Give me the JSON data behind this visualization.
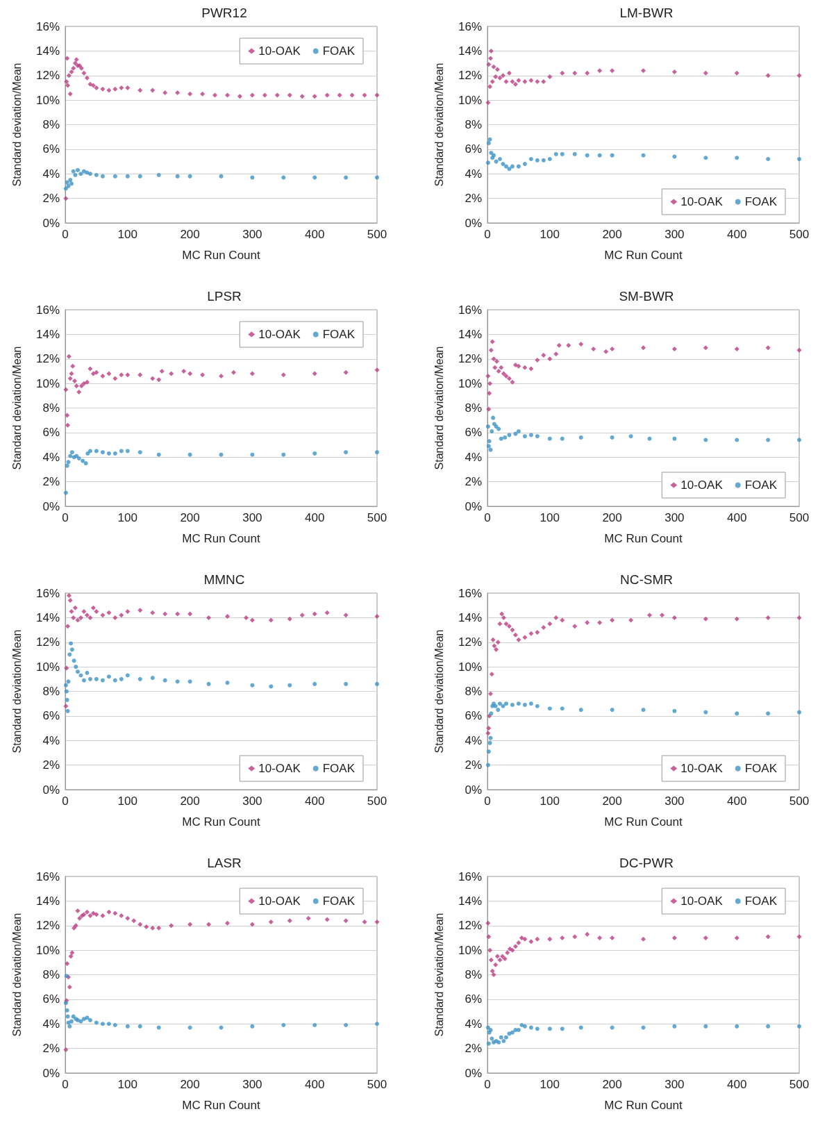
{
  "chart_data": [
    {
      "type": "scatter",
      "title": "PWR12",
      "xlabel": "MC Run Count",
      "ylabel": "Standard deviation/Mean",
      "xlim": [
        0,
        500
      ],
      "xticks": [
        0,
        100,
        200,
        300,
        400,
        500
      ],
      "ylim": [
        0,
        16
      ],
      "yticks": [
        {
          "value": 0,
          "label": "0%"
        },
        {
          "value": 2,
          "label": "2%"
        },
        {
          "value": 4,
          "label": "4%"
        },
        {
          "value": 6,
          "label": "6%"
        },
        {
          "value": 8,
          "label": "8%"
        },
        {
          "value": 10,
          "label": "10%"
        },
        {
          "value": 12,
          "label": "12%"
        },
        {
          "value": 14,
          "label": "14%"
        },
        {
          "value": 16,
          "label": "16%"
        }
      ],
      "grid": "y",
      "legend": "top right",
      "series": [
        {
          "name": "10-OAK",
          "color": "#b93b82",
          "marker": "diamond",
          "x": [
            1,
            2,
            3,
            4,
            6,
            8,
            10,
            13,
            16,
            18,
            20,
            23,
            26,
            30,
            35,
            40,
            45,
            50,
            60,
            70,
            80,
            90,
            100,
            120,
            140,
            160,
            180,
            200,
            220,
            240,
            260,
            280,
            300,
            320,
            340,
            360,
            380,
            400,
            420,
            440,
            460,
            480,
            500
          ],
          "values": [
            2.0,
            11.5,
            13.4,
            11.2,
            12.0,
            10.5,
            12.3,
            12.6,
            13.0,
            13.3,
            12.8,
            12.8,
            12.6,
            12.2,
            11.8,
            11.3,
            11.2,
            11.0,
            10.9,
            10.8,
            10.9,
            11.0,
            11.0,
            10.8,
            10.8,
            10.6,
            10.6,
            10.5,
            10.5,
            10.4,
            10.4,
            10.3,
            10.4,
            10.4,
            10.4,
            10.4,
            10.3,
            10.3,
            10.4,
            10.4,
            10.4,
            10.4,
            10.4
          ]
        },
        {
          "name": "FOAK",
          "color": "#3b92c4",
          "marker": "circle",
          "x": [
            1,
            3,
            5,
            8,
            10,
            13,
            16,
            20,
            25,
            30,
            35,
            40,
            50,
            60,
            80,
            100,
            120,
            150,
            180,
            200,
            250,
            300,
            350,
            400,
            450,
            500
          ],
          "values": [
            2.8,
            3.3,
            3.0,
            3.5,
            3.2,
            4.2,
            3.9,
            4.3,
            4.0,
            4.2,
            4.1,
            4.0,
            3.9,
            3.8,
            3.8,
            3.8,
            3.8,
            3.9,
            3.8,
            3.8,
            3.8,
            3.7,
            3.7,
            3.7,
            3.7,
            3.7
          ]
        }
      ]
    },
    {
      "type": "scatter",
      "title": "LM-BWR",
      "xlabel": "MC Run Count",
      "ylabel": "Standard deviation/Mean",
      "xlim": [
        0,
        500
      ],
      "xticks": [
        0,
        100,
        200,
        300,
        400,
        500
      ],
      "ylim": [
        0,
        16
      ],
      "yticks": [
        {
          "value": 0,
          "label": "0%"
        },
        {
          "value": 2,
          "label": "2%"
        },
        {
          "value": 4,
          "label": "4%"
        },
        {
          "value": 6,
          "label": "6%"
        },
        {
          "value": 8,
          "label": "8%"
        },
        {
          "value": 10,
          "label": "10%"
        },
        {
          "value": 12,
          "label": "12%"
        },
        {
          "value": 14,
          "label": "14%"
        },
        {
          "value": 16,
          "label": "16%"
        }
      ],
      "grid": "y",
      "legend": "bottom right",
      "series": [
        {
          "name": "10-OAK",
          "color": "#b93b82",
          "marker": "diamond",
          "x": [
            1,
            2,
            4,
            5,
            6,
            8,
            10,
            13,
            16,
            20,
            25,
            30,
            35,
            40,
            45,
            50,
            60,
            70,
            80,
            90,
            100,
            120,
            140,
            160,
            180,
            200,
            250,
            300,
            350,
            400,
            450,
            500
          ],
          "values": [
            9.8,
            12.9,
            11.1,
            13.4,
            14.0,
            11.5,
            12.7,
            11.9,
            12.5,
            11.8,
            12.0,
            11.5,
            12.2,
            11.5,
            11.3,
            11.6,
            11.5,
            11.6,
            11.5,
            11.5,
            11.9,
            12.2,
            12.2,
            12.2,
            12.4,
            12.4,
            12.4,
            12.3,
            12.2,
            12.2,
            12.0,
            12.0
          ]
        },
        {
          "name": "FOAK",
          "color": "#3b92c4",
          "marker": "circle",
          "x": [
            1,
            2,
            4,
            6,
            8,
            10,
            14,
            20,
            25,
            30,
            35,
            40,
            50,
            60,
            70,
            80,
            90,
            100,
            110,
            120,
            140,
            160,
            180,
            200,
            250,
            300,
            350,
            400,
            450,
            500
          ],
          "values": [
            4.9,
            6.5,
            6.8,
            5.7,
            5.3,
            5.5,
            5.0,
            5.2,
            4.8,
            4.6,
            4.4,
            4.6,
            4.6,
            4.8,
            5.2,
            5.1,
            5.1,
            5.2,
            5.6,
            5.6,
            5.6,
            5.5,
            5.5,
            5.5,
            5.5,
            5.4,
            5.3,
            5.3,
            5.2,
            5.2
          ]
        }
      ]
    },
    {
      "type": "scatter",
      "title": "LPSR",
      "xlabel": "MC Run Count",
      "ylabel": "Standard deviation/Mean",
      "xlim": [
        0,
        500
      ],
      "xticks": [
        0,
        100,
        200,
        300,
        400,
        500
      ],
      "ylim": [
        0,
        16
      ],
      "yticks": [
        {
          "value": 0,
          "label": "0%"
        },
        {
          "value": 2,
          "label": "2%"
        },
        {
          "value": 4,
          "label": "4%"
        },
        {
          "value": 6,
          "label": "6%"
        },
        {
          "value": 8,
          "label": "8%"
        },
        {
          "value": 10,
          "label": "10%"
        },
        {
          "value": 12,
          "label": "12%"
        },
        {
          "value": 14,
          "label": "14%"
        },
        {
          "value": 16,
          "label": "16%"
        }
      ],
      "grid": "y",
      "legend": "top right",
      "series": [
        {
          "name": "10-OAK",
          "color": "#b93b82",
          "marker": "diamond",
          "x": [
            1,
            3,
            4,
            6,
            8,
            10,
            12,
            15,
            18,
            22,
            26,
            30,
            35,
            40,
            45,
            50,
            60,
            70,
            80,
            90,
            100,
            120,
            140,
            150,
            155,
            170,
            190,
            200,
            220,
            250,
            270,
            300,
            350,
            400,
            450,
            500
          ],
          "values": [
            9.5,
            7.4,
            6.6,
            12.2,
            10.4,
            10.8,
            11.4,
            10.2,
            9.8,
            9.3,
            9.8,
            10.0,
            10.1,
            11.2,
            10.8,
            10.9,
            10.6,
            10.8,
            10.4,
            10.7,
            10.7,
            10.7,
            10.4,
            10.3,
            11.0,
            10.8,
            11.0,
            10.8,
            10.7,
            10.6,
            10.9,
            10.8,
            10.7,
            10.8,
            10.9,
            11.1
          ]
        },
        {
          "name": "FOAK",
          "color": "#3b92c4",
          "marker": "circle",
          "x": [
            1,
            3,
            5,
            8,
            11,
            14,
            18,
            22,
            28,
            33,
            36,
            40,
            50,
            60,
            70,
            80,
            90,
            100,
            120,
            150,
            200,
            250,
            300,
            350,
            400,
            450,
            500
          ],
          "values": [
            1.1,
            3.3,
            3.6,
            4.1,
            4.4,
            4.0,
            4.1,
            3.9,
            3.7,
            3.5,
            4.3,
            4.5,
            4.5,
            4.4,
            4.3,
            4.3,
            4.5,
            4.5,
            4.4,
            4.2,
            4.2,
            4.2,
            4.2,
            4.2,
            4.3,
            4.4,
            4.4
          ]
        }
      ]
    },
    {
      "type": "scatter",
      "title": "SM-BWR",
      "xlabel": "MC Run Count",
      "ylabel": "Standard deviation/Mean",
      "xlim": [
        0,
        500
      ],
      "xticks": [
        0,
        100,
        200,
        300,
        400,
        500
      ],
      "ylim": [
        0,
        16
      ],
      "yticks": [
        {
          "value": 0,
          "label": "0%"
        },
        {
          "value": 2,
          "label": "2%"
        },
        {
          "value": 4,
          "label": "4%"
        },
        {
          "value": 6,
          "label": "6%"
        },
        {
          "value": 8,
          "label": "8%"
        },
        {
          "value": 10,
          "label": "10%"
        },
        {
          "value": 12,
          "label": "12%"
        },
        {
          "value": 14,
          "label": "14%"
        },
        {
          "value": 16,
          "label": "16%"
        }
      ],
      "grid": "y",
      "legend": "bottom right",
      "series": [
        {
          "name": "10-OAK",
          "color": "#b93b82",
          "marker": "diamond",
          "x": [
            1,
            2,
            3,
            4,
            6,
            8,
            10,
            12,
            15,
            18,
            22,
            26,
            30,
            35,
            40,
            45,
            50,
            60,
            70,
            80,
            90,
            100,
            110,
            115,
            130,
            150,
            170,
            190,
            200,
            250,
            300,
            350,
            400,
            450,
            500
          ],
          "values": [
            10.6,
            7.9,
            9.2,
            10.0,
            12.7,
            13.4,
            12.0,
            11.3,
            11.8,
            11.0,
            11.3,
            10.8,
            10.6,
            10.4,
            10.1,
            11.5,
            11.4,
            11.3,
            11.2,
            11.9,
            12.3,
            12.0,
            12.4,
            13.1,
            13.1,
            13.2,
            12.8,
            12.6,
            12.8,
            12.9,
            12.8,
            12.9,
            12.8,
            12.9,
            12.7
          ]
        },
        {
          "name": "FOAK",
          "color": "#3b92c4",
          "marker": "circle",
          "x": [
            1,
            2,
            3,
            5,
            7,
            9,
            11,
            14,
            18,
            22,
            28,
            35,
            45,
            50,
            60,
            70,
            80,
            100,
            120,
            150,
            200,
            230,
            260,
            300,
            350,
            400,
            450,
            500
          ],
          "values": [
            6.5,
            4.9,
            5.3,
            4.6,
            6.1,
            7.2,
            6.7,
            6.5,
            6.3,
            5.5,
            5.6,
            5.8,
            5.9,
            6.1,
            5.7,
            5.8,
            5.7,
            5.5,
            5.5,
            5.6,
            5.6,
            5.7,
            5.5,
            5.5,
            5.4,
            5.4,
            5.4,
            5.4
          ]
        }
      ]
    },
    {
      "type": "scatter",
      "title": "MMNC",
      "xlabel": "MC Run Count",
      "ylabel": "Standard deviation/Mean",
      "xlim": [
        0,
        500
      ],
      "xticks": [
        0,
        100,
        200,
        300,
        400,
        500
      ],
      "ylim": [
        0,
        16
      ],
      "yticks": [
        {
          "value": 0,
          "label": "0%"
        },
        {
          "value": 2,
          "label": "2%"
        },
        {
          "value": 4,
          "label": "4%"
        },
        {
          "value": 6,
          "label": "6%"
        },
        {
          "value": 8,
          "label": "8%"
        },
        {
          "value": 10,
          "label": "10%"
        },
        {
          "value": 12,
          "label": "12%"
        },
        {
          "value": 14,
          "label": "14%"
        },
        {
          "value": 16,
          "label": "16%"
        }
      ],
      "grid": "y",
      "legend": "bottom right",
      "series": [
        {
          "name": "10-OAK",
          "color": "#b93b82",
          "marker": "diamond",
          "x": [
            1,
            2,
            4,
            6,
            8,
            10,
            13,
            16,
            20,
            25,
            30,
            35,
            40,
            45,
            50,
            60,
            70,
            80,
            90,
            100,
            120,
            140,
            160,
            180,
            200,
            230,
            260,
            290,
            300,
            330,
            360,
            380,
            400,
            420,
            450,
            500
          ],
          "values": [
            6.8,
            9.9,
            13.3,
            15.8,
            15.4,
            14.5,
            14.0,
            14.8,
            13.8,
            14.0,
            14.5,
            14.2,
            14.0,
            14.8,
            14.5,
            14.2,
            14.4,
            14.0,
            14.2,
            14.5,
            14.6,
            14.4,
            14.3,
            14.3,
            14.3,
            14.0,
            14.1,
            14.0,
            13.8,
            13.8,
            13.9,
            14.2,
            14.3,
            14.4,
            14.2,
            14.1
          ]
        },
        {
          "name": "FOAK",
          "color": "#3b92c4",
          "marker": "circle",
          "x": [
            1,
            2,
            3,
            4,
            5,
            7,
            9,
            11,
            14,
            17,
            20,
            25,
            30,
            35,
            40,
            50,
            60,
            70,
            80,
            90,
            100,
            120,
            140,
            160,
            180,
            200,
            230,
            260,
            300,
            330,
            360,
            400,
            450,
            500
          ],
          "values": [
            8.5,
            8.0,
            7.3,
            6.4,
            8.8,
            11.0,
            11.9,
            11.4,
            10.5,
            10.0,
            9.6,
            9.3,
            8.9,
            9.5,
            9.0,
            9.0,
            8.9,
            9.2,
            8.9,
            9.0,
            9.3,
            9.0,
            9.1,
            8.9,
            8.8,
            8.8,
            8.6,
            8.7,
            8.5,
            8.4,
            8.5,
            8.6,
            8.6,
            8.6
          ]
        }
      ]
    },
    {
      "type": "scatter",
      "title": "NC-SMR",
      "xlabel": "MC Run Count",
      "ylabel": "Standard deviation/Mean",
      "xlim": [
        0,
        500
      ],
      "xticks": [
        0,
        100,
        200,
        300,
        400,
        500
      ],
      "ylim": [
        0,
        16
      ],
      "yticks": [
        {
          "value": 0,
          "label": "0%"
        },
        {
          "value": 2,
          "label": "2%"
        },
        {
          "value": 4,
          "label": "4%"
        },
        {
          "value": 6,
          "label": "6%"
        },
        {
          "value": 8,
          "label": "8%"
        },
        {
          "value": 10,
          "label": "10%"
        },
        {
          "value": 12,
          "label": "12%"
        },
        {
          "value": 14,
          "label": "14%"
        },
        {
          "value": 16,
          "label": "16%"
        }
      ],
      "grid": "y",
      "legend": "bottom right",
      "series": [
        {
          "name": "10-OAK",
          "color": "#b93b82",
          "marker": "diamond",
          "x": [
            1,
            2,
            3,
            5,
            7,
            9,
            11,
            14,
            17,
            20,
            23,
            26,
            30,
            35,
            40,
            45,
            50,
            60,
            70,
            80,
            90,
            100,
            110,
            120,
            140,
            160,
            180,
            200,
            230,
            260,
            280,
            300,
            350,
            400,
            450,
            500
          ],
          "values": [
            4.6,
            5.0,
            6.0,
            7.8,
            9.4,
            12.2,
            11.7,
            11.4,
            12.0,
            13.5,
            14.3,
            14.0,
            13.5,
            13.3,
            13.0,
            12.6,
            12.2,
            12.4,
            12.7,
            12.8,
            13.2,
            13.5,
            14.0,
            13.8,
            13.3,
            13.6,
            13.6,
            13.8,
            13.8,
            14.2,
            14.2,
            14.0,
            13.9,
            13.9,
            14.0,
            14.0
          ]
        },
        {
          "name": "FOAK",
          "color": "#3b92c4",
          "marker": "circle",
          "x": [
            1,
            2,
            4,
            5,
            6,
            8,
            10,
            13,
            17,
            20,
            25,
            30,
            40,
            50,
            60,
            70,
            80,
            100,
            120,
            150,
            200,
            250,
            300,
            350,
            400,
            450,
            500
          ],
          "values": [
            2.0,
            3.1,
            3.8,
            4.2,
            6.2,
            6.8,
            7.0,
            6.8,
            6.5,
            7.0,
            6.8,
            7.0,
            6.9,
            7.0,
            6.9,
            7.0,
            6.8,
            6.6,
            6.6,
            6.5,
            6.5,
            6.5,
            6.4,
            6.3,
            6.2,
            6.2,
            6.3
          ]
        }
      ]
    },
    {
      "type": "scatter",
      "title": "LASR",
      "xlabel": "MC Run Count",
      "ylabel": "Standard deviation/Mean",
      "xlim": [
        0,
        500
      ],
      "xticks": [
        0,
        100,
        200,
        300,
        400,
        500
      ],
      "ylim": [
        0,
        16
      ],
      "yticks": [
        {
          "value": 0,
          "label": "0%"
        },
        {
          "value": 2,
          "label": "2%"
        },
        {
          "value": 4,
          "label": "4%"
        },
        {
          "value": 6,
          "label": "6%"
        },
        {
          "value": 8,
          "label": "8%"
        },
        {
          "value": 10,
          "label": "10%"
        },
        {
          "value": 12,
          "label": "12%"
        },
        {
          "value": 14,
          "label": "14%"
        },
        {
          "value": 16,
          "label": "16%"
        }
      ],
      "grid": "y",
      "legend": "top right",
      "series": [
        {
          "name": "10-OAK",
          "color": "#b93b82",
          "marker": "diamond",
          "x": [
            1,
            2,
            3,
            5,
            7,
            9,
            11,
            14,
            17,
            20,
            23,
            27,
            30,
            35,
            40,
            45,
            50,
            60,
            70,
            80,
            90,
            100,
            110,
            120,
            130,
            140,
            150,
            170,
            200,
            230,
            260,
            300,
            330,
            360,
            390,
            420,
            450,
            480,
            500
          ],
          "values": [
            1.9,
            5.9,
            8.9,
            7.8,
            7.0,
            9.5,
            9.8,
            11.8,
            12.0,
            13.2,
            12.6,
            12.8,
            12.9,
            13.1,
            12.8,
            13.0,
            12.9,
            12.8,
            13.1,
            13.0,
            12.8,
            12.6,
            12.4,
            12.1,
            11.9,
            11.8,
            11.8,
            12.0,
            12.1,
            12.1,
            12.2,
            12.1,
            12.3,
            12.4,
            12.6,
            12.5,
            12.4,
            12.3,
            12.3
          ]
        },
        {
          "name": "FOAK",
          "color": "#3b92c4",
          "marker": "circle",
          "x": [
            1,
            2,
            3,
            4,
            5,
            7,
            10,
            13,
            17,
            20,
            25,
            30,
            35,
            40,
            50,
            60,
            70,
            80,
            100,
            120,
            150,
            200,
            250,
            300,
            350,
            400,
            450,
            500
          ],
          "values": [
            5.7,
            7.9,
            5.1,
            4.6,
            4.1,
            3.8,
            4.2,
            4.6,
            4.4,
            4.3,
            4.2,
            4.4,
            4.5,
            4.3,
            4.1,
            4.0,
            4.0,
            3.9,
            3.8,
            3.8,
            3.7,
            3.7,
            3.7,
            3.8,
            3.9,
            3.9,
            3.9,
            4.0
          ]
        }
      ]
    },
    {
      "type": "scatter",
      "title": "DC-PWR",
      "xlabel": "MC Run Count",
      "ylabel": "Standard deviation/Mean",
      "xlim": [
        0,
        500
      ],
      "xticks": [
        0,
        100,
        200,
        300,
        400,
        500
      ],
      "ylim": [
        0,
        16
      ],
      "yticks": [
        {
          "value": 0,
          "label": "0%"
        },
        {
          "value": 2,
          "label": "2%"
        },
        {
          "value": 4,
          "label": "4%"
        },
        {
          "value": 6,
          "label": "6%"
        },
        {
          "value": 8,
          "label": "8%"
        },
        {
          "value": 10,
          "label": "10%"
        },
        {
          "value": 12,
          "label": "12%"
        },
        {
          "value": 14,
          "label": "14%"
        },
        {
          "value": 16,
          "label": "16%"
        }
      ],
      "grid": "y",
      "legend": "top right",
      "series": [
        {
          "name": "10-OAK",
          "color": "#b93b82",
          "marker": "diamond",
          "x": [
            1,
            2,
            4,
            6,
            8,
            10,
            13,
            16,
            20,
            24,
            28,
            32,
            36,
            40,
            45,
            50,
            55,
            60,
            70,
            80,
            100,
            120,
            140,
            160,
            180,
            200,
            250,
            300,
            350,
            400,
            450,
            500
          ],
          "values": [
            12.2,
            11.1,
            10.0,
            9.2,
            8.3,
            8.0,
            8.8,
            9.5,
            9.2,
            9.5,
            9.3,
            9.8,
            10.1,
            10.0,
            10.3,
            10.6,
            11.0,
            10.9,
            10.7,
            10.9,
            10.9,
            11.0,
            11.1,
            11.3,
            11.0,
            11.0,
            10.9,
            11.0,
            11.0,
            11.0,
            11.1,
            11.1
          ]
        },
        {
          "name": "FOAK",
          "color": "#3b92c4",
          "marker": "circle",
          "x": [
            1,
            2,
            3,
            5,
            7,
            10,
            14,
            18,
            22,
            26,
            30,
            35,
            40,
            45,
            50,
            55,
            60,
            70,
            80,
            100,
            120,
            150,
            200,
            250,
            300,
            350,
            400,
            450,
            500
          ],
          "values": [
            3.7,
            2.4,
            3.3,
            3.5,
            2.8,
            2.5,
            2.6,
            2.5,
            2.9,
            2.6,
            2.9,
            3.2,
            3.3,
            3.5,
            3.5,
            3.9,
            3.8,
            3.7,
            3.6,
            3.6,
            3.6,
            3.7,
            3.7,
            3.7,
            3.8,
            3.8,
            3.8,
            3.8,
            3.8
          ]
        }
      ]
    }
  ]
}
